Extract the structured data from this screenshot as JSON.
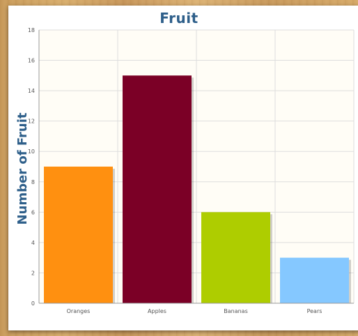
{
  "chart_data": {
    "type": "bar",
    "title": "Fruit",
    "xlabel": "",
    "ylabel": "Number of Fruit",
    "categories": [
      "Oranges",
      "Apples",
      "Bananas",
      "Pears"
    ],
    "values": [
      9,
      15,
      6,
      3
    ],
    "colors": [
      "#ff9010",
      "#7b0026",
      "#aecd00",
      "#85c8ff"
    ],
    "ylim": [
      0,
      18
    ],
    "yticks": [
      0,
      2,
      4,
      6,
      8,
      10,
      12,
      14,
      16,
      18
    ],
    "grid": true,
    "plot_background": "#fffdf6",
    "grid_color": "#dddddd"
  }
}
